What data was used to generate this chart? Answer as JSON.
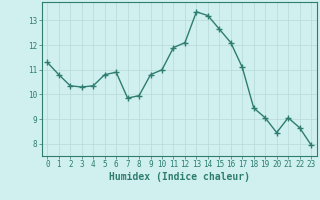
{
  "x": [
    0,
    1,
    2,
    3,
    4,
    5,
    6,
    7,
    8,
    9,
    10,
    11,
    12,
    13,
    14,
    15,
    16,
    17,
    18,
    19,
    20,
    21,
    22,
    23
  ],
  "y": [
    11.3,
    10.8,
    10.35,
    10.3,
    10.35,
    10.8,
    10.9,
    9.85,
    9.95,
    10.8,
    11.0,
    11.9,
    12.1,
    13.35,
    13.2,
    12.65,
    12.1,
    11.1,
    9.45,
    9.05,
    8.45,
    9.05,
    8.65,
    7.95
  ],
  "line_color": "#2e7d6e",
  "marker": "+",
  "markersize": 4,
  "linewidth": 1.0,
  "bg_color": "#d0f0f0",
  "grid_color": "#b8d8d8",
  "xlabel": "Humidex (Indice chaleur)",
  "xlim": [
    -0.5,
    23.5
  ],
  "ylim": [
    7.5,
    13.75
  ],
  "yticks": [
    8,
    9,
    10,
    11,
    12,
    13
  ],
  "xticks": [
    0,
    1,
    2,
    3,
    4,
    5,
    6,
    7,
    8,
    9,
    10,
    11,
    12,
    13,
    14,
    15,
    16,
    17,
    18,
    19,
    20,
    21,
    22,
    23
  ],
  "tick_color": "#2e7d6e",
  "label_fontsize": 5.5,
  "xlabel_fontsize": 7.0
}
